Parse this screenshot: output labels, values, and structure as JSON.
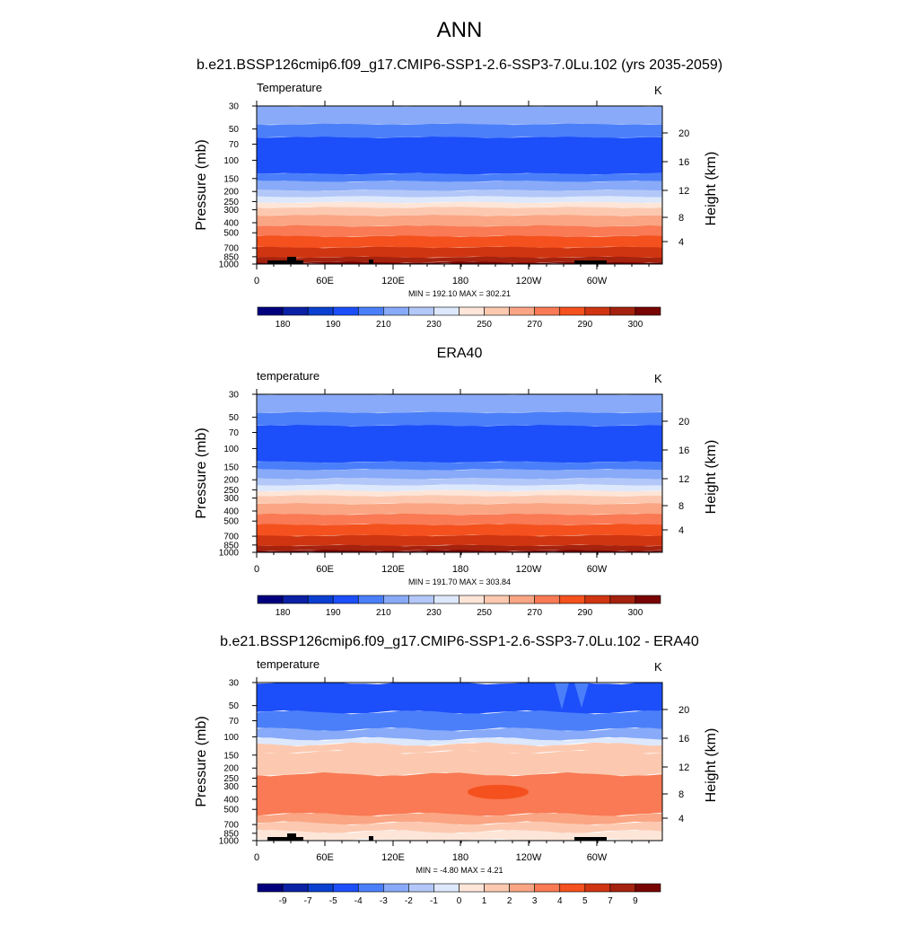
{
  "title": "ANN",
  "chart_data": [
    {
      "type": "heatmap",
      "subtitle": "b.e21.BSSP126cmip6.f09_g17.CMIP6-SSP1-2.6-SSP3-7.0Lu.102 (yrs 2035-2059)",
      "variable": "Temperature",
      "units": "K",
      "ylabel": "Pressure (mb)",
      "ylabel_right": "Height (km)",
      "x_ticks": [
        "0",
        "60E",
        "120E",
        "180",
        "120W",
        "60W"
      ],
      "y_ticks": [
        "30",
        "50",
        "70",
        "100",
        "150",
        "200",
        "250",
        "300",
        "400",
        "500",
        "700",
        "850",
        "1000"
      ],
      "y_right_ticks": [
        "20",
        "16",
        "12",
        "8",
        "4"
      ],
      "levels": [
        180,
        185,
        190,
        200,
        210,
        220,
        230,
        240,
        250,
        260,
        270,
        280,
        290,
        295,
        300
      ],
      "colorbar_labels": [
        "180",
        "190",
        "210",
        "230",
        "250",
        "270",
        "290",
        "300"
      ],
      "min": "192.10",
      "max": "302.21",
      "minmax_text": "MIN = 192.10  MAX = 302.21",
      "topography": true
    },
    {
      "type": "heatmap",
      "subtitle": "ERA40",
      "variable": "temperature",
      "units": "K",
      "ylabel": "Pressure (mb)",
      "ylabel_right": "Height (km)",
      "x_ticks": [
        "0",
        "60E",
        "120E",
        "180",
        "120W",
        "60W"
      ],
      "y_ticks": [
        "30",
        "50",
        "70",
        "100",
        "150",
        "200",
        "250",
        "300",
        "400",
        "500",
        "700",
        "850",
        "1000"
      ],
      "y_right_ticks": [
        "20",
        "16",
        "12",
        "8",
        "4"
      ],
      "levels": [
        180,
        185,
        190,
        200,
        210,
        220,
        230,
        240,
        250,
        260,
        270,
        280,
        290,
        295,
        300
      ],
      "colorbar_labels": [
        "180",
        "190",
        "210",
        "230",
        "250",
        "270",
        "290",
        "300"
      ],
      "min": "191.70",
      "max": "303.84",
      "minmax_text": "MIN = 191.70  MAX = 303.84",
      "topography": false
    },
    {
      "type": "heatmap",
      "subtitle": "b.e21.BSSP126cmip6.f09_g17.CMIP6-SSP1-2.6-SSP3-7.0Lu.102 - ERA40",
      "variable": "temperature",
      "units": "K",
      "ylabel": "Pressure (mb)",
      "ylabel_right": "Height (km)",
      "x_ticks": [
        "0",
        "60E",
        "120E",
        "180",
        "120W",
        "60W"
      ],
      "y_ticks": [
        "30",
        "50",
        "70",
        "100",
        "150",
        "200",
        "250",
        "300",
        "400",
        "500",
        "700",
        "850",
        "1000"
      ],
      "y_right_ticks": [
        "20",
        "16",
        "12",
        "8",
        "4"
      ],
      "levels": [
        -9,
        -7,
        -5,
        -4,
        -3,
        -2,
        -1,
        0,
        1,
        2,
        3,
        4,
        5,
        7,
        9
      ],
      "colorbar_labels": [
        "-9",
        "-7",
        "-5",
        "-4",
        "-3",
        "-2",
        "-1",
        "0",
        "1",
        "2",
        "3",
        "4",
        "5",
        "7",
        "9"
      ],
      "min": "-4.80",
      "max": "4.21",
      "minmax_text": "MIN =  -4.80  MAX =   4.21",
      "topography": true
    }
  ],
  "colormap": [
    "#00007e",
    "#0a21a5",
    "#0b3fcf",
    "#1c4ffa",
    "#4b7ffa",
    "#88aaf8",
    "#b3c8f9",
    "#dde8fc",
    "#fde5d8",
    "#fcc9b0",
    "#faa583",
    "#f97a54",
    "#f4511e",
    "#cf3511",
    "#a5220e",
    "#780404"
  ]
}
